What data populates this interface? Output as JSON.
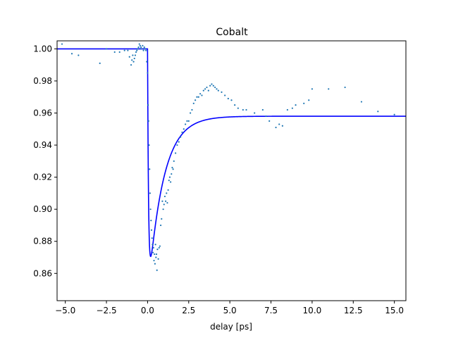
{
  "chart_data": {
    "type": "scatter",
    "title": "Cobalt",
    "xlabel": "delay [ps]",
    "ylabel": "",
    "xlim": [
      -5.5,
      15.7
    ],
    "ylim": [
      0.843,
      1.005
    ],
    "x_ticks": [
      -5.0,
      -2.5,
      0.0,
      2.5,
      5.0,
      7.5,
      10.0,
      12.5,
      15.0
    ],
    "x_tick_labels": [
      "−5.0",
      "−2.5",
      "0.0",
      "2.5",
      "5.0",
      "7.5",
      "10.0",
      "12.5",
      "15.0"
    ],
    "y_ticks": [
      0.86,
      0.88,
      0.9,
      0.92,
      0.94,
      0.96,
      0.98,
      1.0
    ],
    "y_tick_labels": [
      "0.86",
      "0.88",
      "0.90",
      "0.92",
      "0.94",
      "0.96",
      "0.98",
      "1.00"
    ],
    "grid": false,
    "legend": "none",
    "series": [
      {
        "kind": "points",
        "color": "#1f77b4",
        "x": [
          -5.2,
          -4.6,
          -4.2,
          -2.9,
          -2.5,
          -2.0,
          -1.7,
          -1.4,
          -1.2,
          -1.1,
          -1.0,
          -0.95,
          -0.9,
          -0.85,
          -0.8,
          -0.75,
          -0.7,
          -0.65,
          -0.6,
          -0.55,
          -0.5,
          -0.45,
          -0.4,
          -0.35,
          -0.3,
          -0.25,
          -0.2,
          -0.15,
          -0.1,
          -0.05,
          0.0,
          0.03,
          0.06,
          0.09,
          0.12,
          0.15,
          0.18,
          0.21,
          0.24,
          0.27,
          0.3,
          0.33,
          0.36,
          0.39,
          0.42,
          0.45,
          0.48,
          0.51,
          0.54,
          0.57,
          0.6,
          0.65,
          0.7,
          0.75,
          0.8,
          0.85,
          0.9,
          0.95,
          1.0,
          1.05,
          1.1,
          1.15,
          1.2,
          1.25,
          1.3,
          1.35,
          1.4,
          1.45,
          1.5,
          1.55,
          1.6,
          1.7,
          1.8,
          1.9,
          2.0,
          2.1,
          2.2,
          2.3,
          2.4,
          2.5,
          2.6,
          2.7,
          2.8,
          2.9,
          3.0,
          3.1,
          3.2,
          3.3,
          3.4,
          3.5,
          3.6,
          3.7,
          3.8,
          3.9,
          4.0,
          4.1,
          4.2,
          4.3,
          4.5,
          4.7,
          4.9,
          5.1,
          5.3,
          5.5,
          5.8,
          6.0,
          6.5,
          7.0,
          7.2,
          7.4,
          7.8,
          8.0,
          8.2,
          8.5,
          8.8,
          9.0,
          9.5,
          9.8,
          10.0,
          11.0,
          12.0,
          13.0,
          14.0,
          15.0
        ],
        "y": [
          1.003,
          0.997,
          0.996,
          0.991,
          1.0,
          0.998,
          0.998,
          0.999,
          0.999,
          0.995,
          0.99,
          0.993,
          0.996,
          0.992,
          0.994,
          0.996,
          0.998,
          0.999,
          1.0,
          1.001,
          1.003,
          1.002,
          1.001,
          1.0,
          1.002,
          0.999,
          1.001,
          1.0,
          0.999,
          0.992,
          0.985,
          0.965,
          0.955,
          0.94,
          0.925,
          0.91,
          0.9,
          0.893,
          0.887,
          0.882,
          0.878,
          0.873,
          0.876,
          0.868,
          0.872,
          0.866,
          0.878,
          0.87,
          0.872,
          0.862,
          0.875,
          0.869,
          0.876,
          0.877,
          0.89,
          0.894,
          0.905,
          0.9,
          0.903,
          0.908,
          0.905,
          0.91,
          0.904,
          0.912,
          0.918,
          0.92,
          0.917,
          0.922,
          0.926,
          0.925,
          0.93,
          0.935,
          0.94,
          0.942,
          0.945,
          0.948,
          0.95,
          0.953,
          0.955,
          0.955,
          0.96,
          0.962,
          0.966,
          0.968,
          0.97,
          0.97,
          0.972,
          0.971,
          0.974,
          0.975,
          0.976,
          0.974,
          0.977,
          0.978,
          0.977,
          0.976,
          0.975,
          0.974,
          0.973,
          0.971,
          0.969,
          0.968,
          0.965,
          0.963,
          0.962,
          0.962,
          0.96,
          0.962,
          0.958,
          0.955,
          0.951,
          0.953,
          0.952,
          0.962,
          0.963,
          0.965,
          0.966,
          0.968,
          0.975,
          0.975,
          0.976,
          0.967,
          0.961,
          0.959
        ]
      },
      {
        "kind": "fit-line",
        "color": "#0000ff"
      }
    ]
  }
}
